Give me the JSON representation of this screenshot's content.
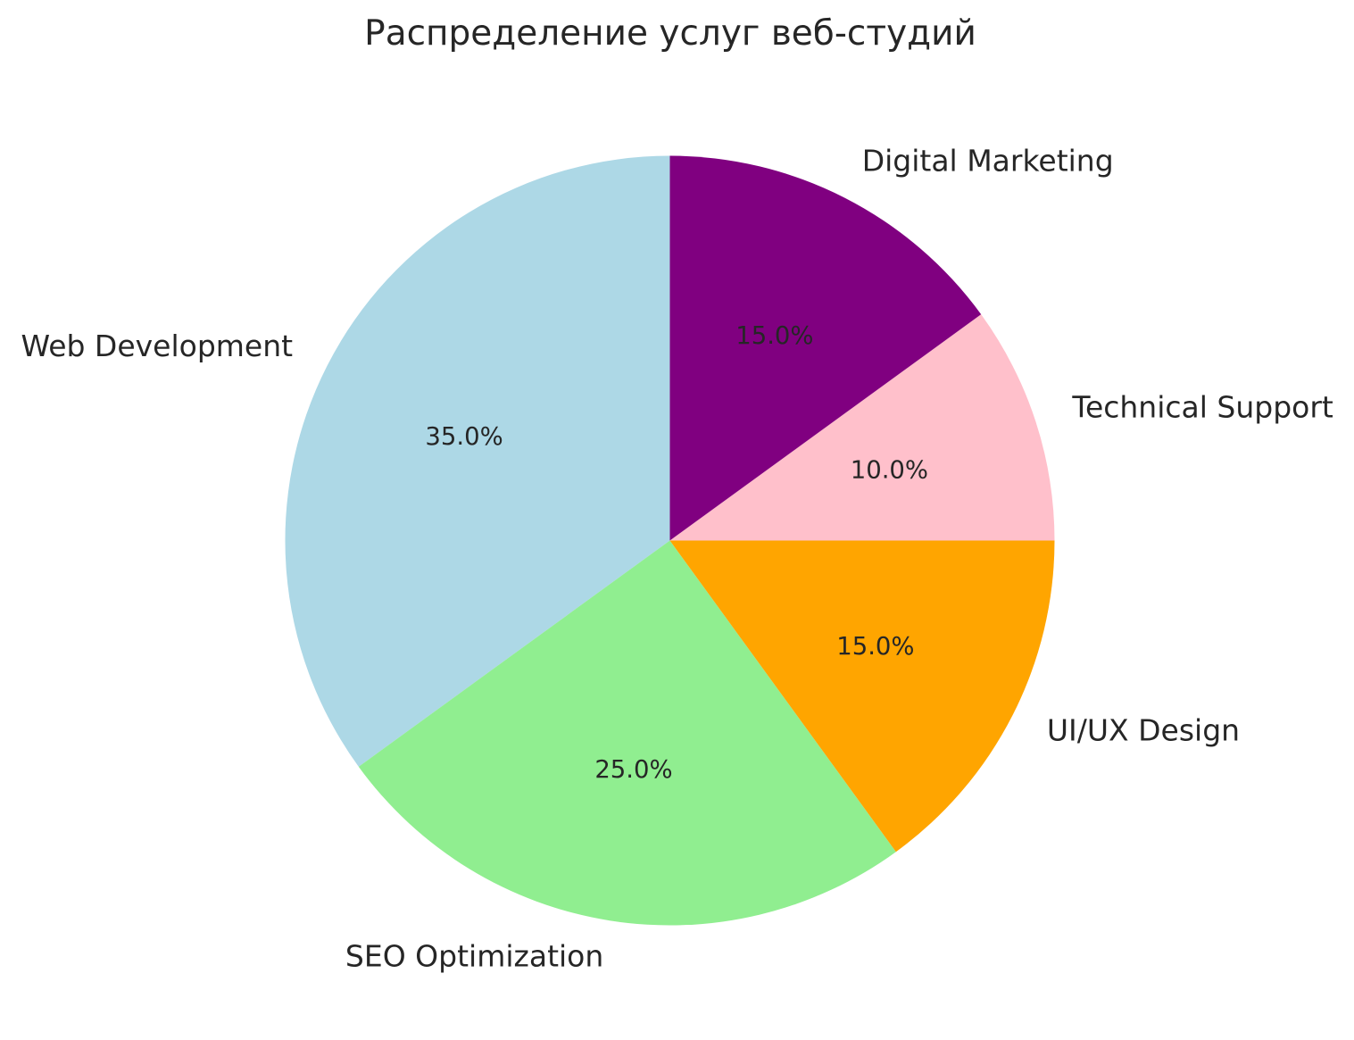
{
  "figure": {
    "background": "#ffffff"
  },
  "chart_data": {
    "type": "pie",
    "title": "Распределение услуг веб-студий",
    "series": [
      {
        "label": "Web Development",
        "value": 35.0,
        "pct_label": "35.0%",
        "color": "#ADD8E6"
      },
      {
        "label": "SEO Optimization",
        "value": 25.0,
        "pct_label": "25.0%",
        "color": "#90EE90"
      },
      {
        "label": "UI/UX Design",
        "value": 15.0,
        "pct_label": "15.0%",
        "color": "#FFA500"
      },
      {
        "label": "Technical Support",
        "value": 10.0,
        "pct_label": "10.0%",
        "color": "#FFC0CB"
      },
      {
        "label": "Digital Marketing",
        "value": 15.0,
        "pct_label": "15.0%",
        "color": "#800080"
      }
    ],
    "start_angle_deg": 90,
    "counterclockwise": true,
    "label_distance": 1.1,
    "pct_distance": 0.6,
    "legend": "none",
    "grid": "off",
    "text_color": "#262626"
  }
}
